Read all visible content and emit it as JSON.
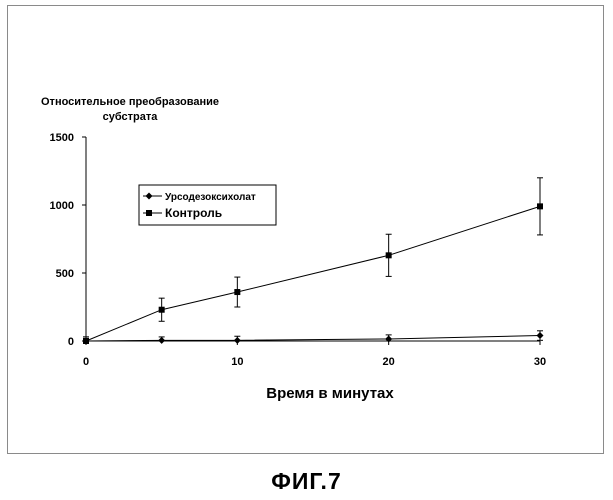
{
  "chart_data": {
    "type": "line",
    "title": "",
    "ylabel_line1": "Относительное преобразование",
    "ylabel_line2": "субстрата",
    "xlabel": "Время в минутах",
    "xlim": [
      0,
      30
    ],
    "ylim": [
      0,
      1500
    ],
    "xticks": [
      "0",
      "10",
      "20",
      "30"
    ],
    "yticks": [
      "0",
      "500",
      "1000",
      "1500"
    ],
    "x_tick_values": [
      0,
      10,
      20,
      30
    ],
    "y_tick_values": [
      0,
      500,
      1000,
      1500
    ],
    "grid": false,
    "legend_position": "upper-left",
    "series": [
      {
        "name": "Урсодезоксихолат",
        "marker": "diamond",
        "x": [
          0,
          5,
          10,
          20,
          30
        ],
        "y": [
          0,
          5,
          5,
          15,
          40
        ],
        "err": [
          30,
          25,
          30,
          30,
          35
        ]
      },
      {
        "name": "Контроль",
        "marker": "square",
        "x": [
          0,
          5,
          10,
          20,
          30
        ],
        "y": [
          0,
          230,
          360,
          630,
          990
        ],
        "err": [
          30,
          85,
          110,
          155,
          210
        ]
      }
    ]
  },
  "figure_caption": "ФИГ.7"
}
